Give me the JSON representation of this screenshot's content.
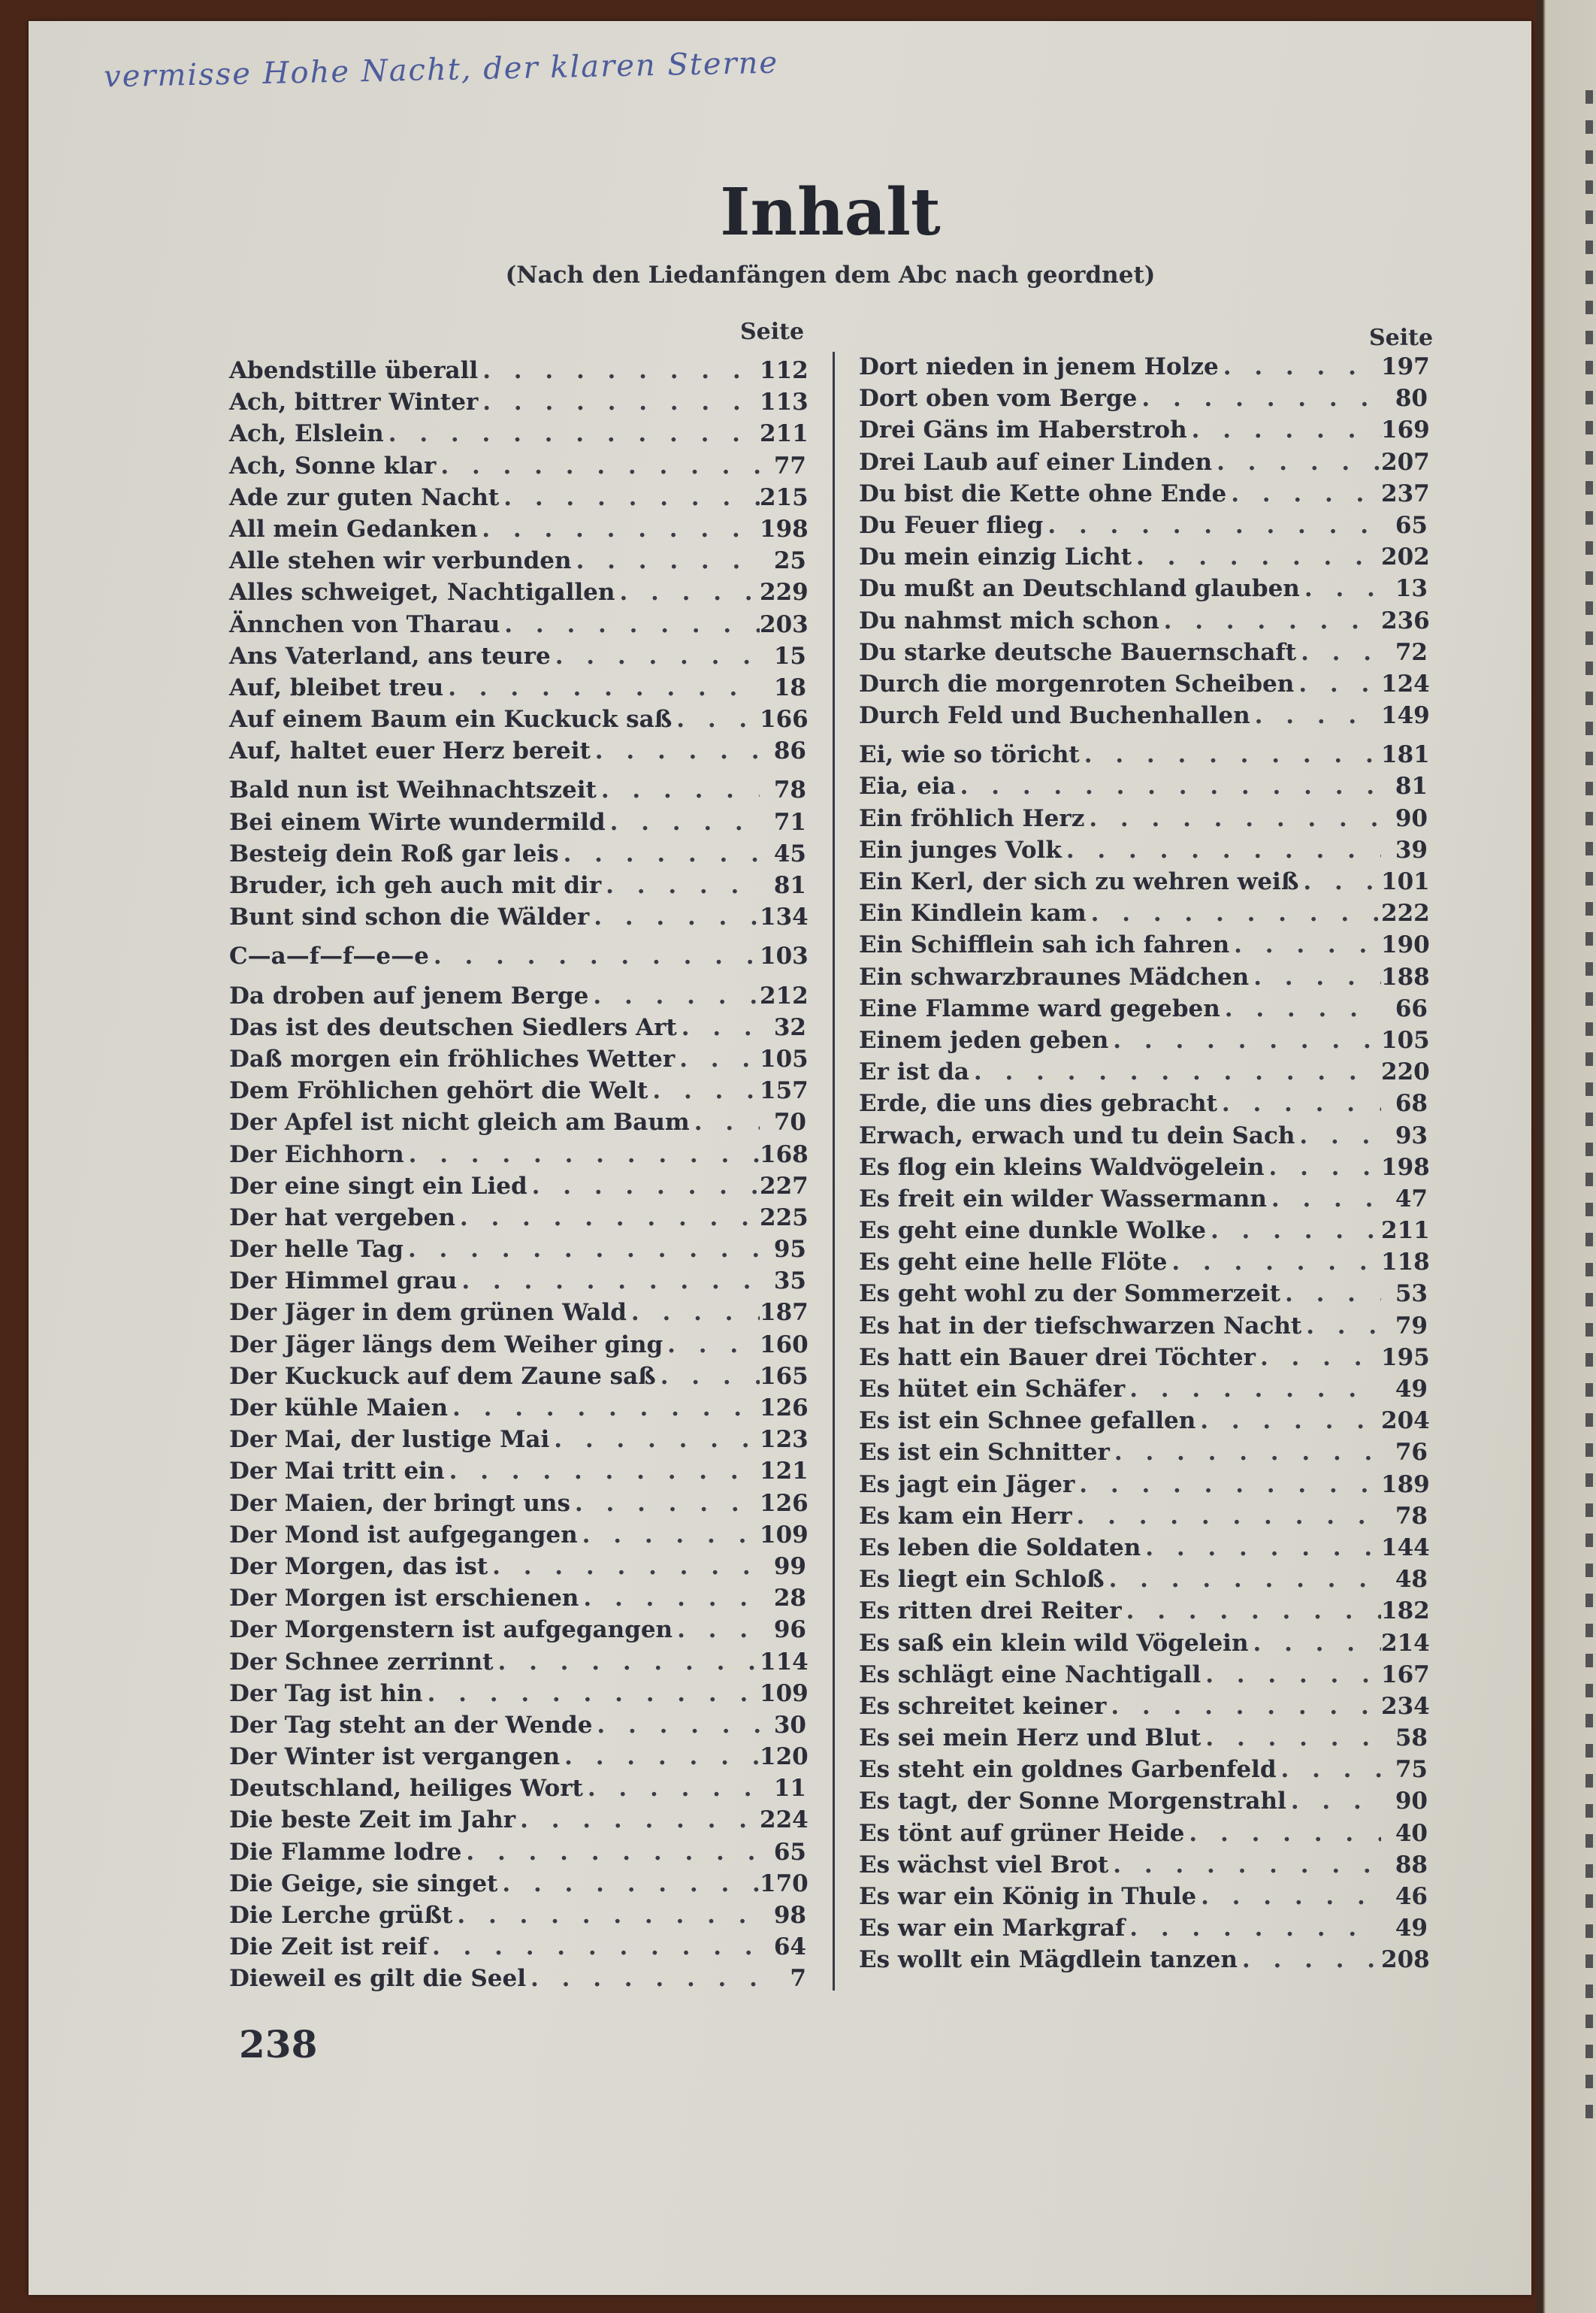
{
  "handwritten_note": "vermisse Hohe Nacht, der klaren Sterne",
  "title": "Inhalt",
  "subtitle": "(Nach den Liedanfängen dem Abc nach geordnet)",
  "page_column_header": "Seite",
  "page_number": "238",
  "colors": {
    "ink": "#2b2d38",
    "paper": "#d9d7ce",
    "handwriting": "#4d5c9c",
    "background": "#4a2619"
  },
  "left_column": [
    {
      "group": [
        [
          "Abendstille überall",
          "112"
        ],
        [
          "Ach, bittrer Winter",
          "113"
        ],
        [
          "Ach, Elslein",
          "211"
        ],
        [
          "Ach, Sonne klar",
          "77"
        ],
        [
          "Ade zur guten Nacht",
          "215"
        ],
        [
          "All mein Gedanken",
          "198"
        ],
        [
          "Alle stehen wir verbunden",
          "25"
        ],
        [
          "Alles schweiget, Nachtigallen",
          "229"
        ],
        [
          "Ännchen von Tharau",
          "203"
        ],
        [
          "Ans Vaterland, ans teure",
          "15"
        ],
        [
          "Auf, bleibet treu",
          "18"
        ],
        [
          "Auf einem Baum ein Kuckuck saß",
          "166"
        ],
        [
          "Auf, haltet euer Herz bereit",
          "86"
        ]
      ]
    },
    {
      "group": [
        [
          "Bald nun ist Weihnachtszeit",
          "78"
        ],
        [
          "Bei einem Wirte wundermild",
          "71"
        ],
        [
          "Besteig dein Roß gar leis",
          "45"
        ],
        [
          "Bruder, ich geh auch mit dir",
          "81"
        ],
        [
          "Bunt sind schon die Wälder",
          "134"
        ]
      ]
    },
    {
      "group": [
        [
          "C—a—f—f—e—e",
          "103"
        ]
      ]
    },
    {
      "group": [
        [
          "Da droben auf jenem Berge",
          "212"
        ],
        [
          "Das ist des deutschen Siedlers Art",
          "32"
        ],
        [
          "Daß morgen ein fröhliches Wetter",
          "105"
        ],
        [
          "Dem Fröhlichen gehört die Welt",
          "157"
        ],
        [
          "Der Apfel ist nicht gleich am Baum",
          "70"
        ],
        [
          "Der Eichhorn",
          "168"
        ],
        [
          "Der eine singt ein Lied",
          "227"
        ],
        [
          "Der hat vergeben",
          "225"
        ],
        [
          "Der helle Tag",
          "95"
        ],
        [
          "Der Himmel grau",
          "35"
        ],
        [
          "Der Jäger in dem grünen Wald",
          "187"
        ],
        [
          "Der Jäger längs dem Weiher ging",
          "160"
        ],
        [
          "Der Kuckuck auf dem Zaune saß",
          "165"
        ],
        [
          "Der kühle Maien",
          "126"
        ],
        [
          "Der Mai, der lustige Mai",
          "123"
        ],
        [
          "Der Mai tritt ein",
          "121"
        ],
        [
          "Der Maien, der bringt uns",
          "126"
        ],
        [
          "Der Mond ist aufgegangen",
          "109"
        ],
        [
          "Der Morgen, das ist",
          "99"
        ],
        [
          "Der Morgen ist erschienen",
          "28"
        ],
        [
          "Der Morgenstern ist aufgegangen",
          "96"
        ],
        [
          "Der Schnee zerrinnt",
          "114"
        ],
        [
          "Der Tag ist hin",
          "109"
        ],
        [
          "Der Tag steht an der Wende",
          "30"
        ],
        [
          "Der Winter ist vergangen",
          "120"
        ],
        [
          "Deutschland, heiliges Wort",
          "11"
        ],
        [
          "Die beste Zeit im Jahr",
          "224"
        ],
        [
          "Die Flamme lodre",
          "65"
        ],
        [
          "Die Geige, sie singet",
          "170"
        ],
        [
          "Die Lerche grüßt",
          "98"
        ],
        [
          "Die Zeit ist reif",
          "64"
        ],
        [
          "Dieweil es gilt die Seel",
          "7"
        ]
      ]
    }
  ],
  "right_column": [
    {
      "group": [
        [
          "Dort nieden in jenem Holze",
          "197"
        ],
        [
          "Dort oben vom Berge",
          "80"
        ],
        [
          "Drei Gäns im Haberstroh",
          "169"
        ],
        [
          "Drei Laub auf einer Linden",
          "207"
        ],
        [
          "Du bist die Kette ohne Ende",
          "237"
        ],
        [
          "Du Feuer flieg",
          "65"
        ],
        [
          "Du mein einzig Licht",
          "202"
        ],
        [
          "Du mußt an Deutschland glauben",
          "13"
        ],
        [
          "Du nahmst mich schon",
          "236"
        ],
        [
          "Du starke deutsche Bauernschaft",
          "72"
        ],
        [
          "Durch die morgenroten Scheiben",
          "124"
        ],
        [
          "Durch Feld und Buchenhallen",
          "149"
        ]
      ]
    },
    {
      "group": [
        [
          "Ei, wie so töricht",
          "181"
        ],
        [
          "Eia, eia",
          "81"
        ],
        [
          "Ein fröhlich Herz",
          "90"
        ],
        [
          "Ein junges Volk",
          "39"
        ],
        [
          "Ein Kerl, der sich zu wehren weiß",
          "101"
        ],
        [
          "Ein Kindlein kam",
          "222"
        ],
        [
          "Ein Schifflein sah ich fahren",
          "190"
        ],
        [
          "Ein schwarzbraunes Mädchen",
          "188"
        ],
        [
          "Eine Flamme ward gegeben",
          "66"
        ],
        [
          "Einem jeden geben",
          "105"
        ],
        [
          "Er ist da",
          "220"
        ],
        [
          "Erde, die uns dies gebracht",
          "68"
        ],
        [
          "Erwach, erwach und tu dein Sach",
          "93"
        ],
        [
          "Es flog ein kleins Waldvögelein",
          "198"
        ],
        [
          "Es freit ein wilder Wassermann",
          "47"
        ],
        [
          "Es geht eine dunkle Wolke",
          "211"
        ],
        [
          "Es geht eine helle Flöte",
          "118"
        ],
        [
          "Es geht wohl zu der Sommerzeit",
          "53"
        ],
        [
          "Es hat in der tiefschwarzen Nacht",
          "79"
        ],
        [
          "Es hatt ein Bauer drei Töchter",
          "195"
        ],
        [
          "Es hütet ein Schäfer",
          "49"
        ],
        [
          "Es ist ein Schnee gefallen",
          "204"
        ],
        [
          "Es ist ein Schnitter",
          "76"
        ],
        [
          "Es jagt ein Jäger",
          "189"
        ],
        [
          "Es kam ein Herr",
          "78"
        ],
        [
          "Es leben die Soldaten",
          "144"
        ],
        [
          "Es liegt ein Schloß",
          "48"
        ],
        [
          "Es ritten drei Reiter",
          "182"
        ],
        [
          "Es saß ein klein wild Vögelein",
          "214"
        ],
        [
          "Es schlägt eine Nachtigall",
          "167"
        ],
        [
          "Es schreitet keiner",
          "234"
        ],
        [
          "Es sei mein Herz und Blut",
          "58"
        ],
        [
          "Es steht ein goldnes Garbenfeld",
          "75"
        ],
        [
          "Es tagt, der Sonne Morgenstrahl",
          "90"
        ],
        [
          "Es tönt auf grüner Heide",
          "40"
        ],
        [
          "Es wächst viel Brot",
          "88"
        ],
        [
          "Es war ein König in Thule",
          "46"
        ],
        [
          "Es war ein Markgraf",
          "49"
        ],
        [
          "Es wollt ein Mägdlein tanzen",
          "208"
        ]
      ]
    }
  ]
}
